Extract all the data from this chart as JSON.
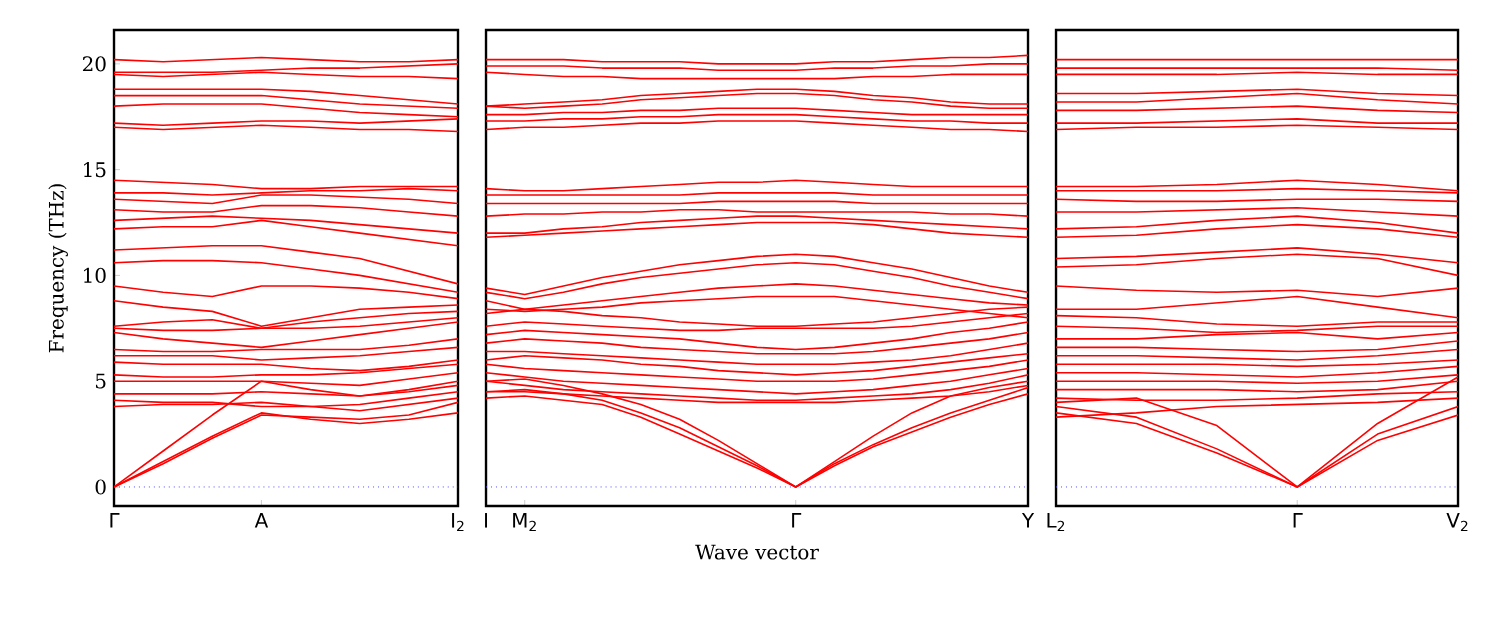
{
  "chart_data": [
    {
      "type": "line",
      "ylabel": "Frequency (THz)",
      "categories": [
        "Γ",
        null,
        null,
        "A",
        null,
        null,
        null,
        "I$_{2}$"
      ],
      "ylim": [
        -0.9,
        21.6
      ],
      "yticks": [
        0,
        5,
        10,
        15,
        20
      ],
      "ref_lines": [
        {
          "axis": "y",
          "value": 0,
          "color": "#4c4cff",
          "line_style": "dotted"
        }
      ],
      "series": [
        {
          "color": "#ff0000",
          "values": [
            0,
            1.1,
            2.3,
            3.4,
            3.3,
            3.2,
            3.4,
            4.0
          ]
        },
        {
          "color": "#ff0000",
          "values": [
            0,
            1.2,
            2.4,
            3.5,
            3.2,
            3.0,
            3.2,
            3.5
          ]
        },
        {
          "color": "#ff0000",
          "values": [
            0,
            1.7,
            3.4,
            5.0,
            4.6,
            4.3,
            4.5,
            4.8
          ]
        },
        {
          "color": "#ff0000",
          "values": [
            3.8,
            3.9,
            3.9,
            4.0,
            3.8,
            3.6,
            3.9,
            4.2
          ]
        },
        {
          "color": "#ff0000",
          "values": [
            4.1,
            4.0,
            4.0,
            3.8,
            3.8,
            3.9,
            4.2,
            4.5
          ]
        },
        {
          "color": "#ff0000",
          "values": [
            4.4,
            4.4,
            4.4,
            4.5,
            4.4,
            4.3,
            4.6,
            5.0
          ]
        },
        {
          "color": "#ff0000",
          "values": [
            5.0,
            5.0,
            5.0,
            5.0,
            4.9,
            4.8,
            5.1,
            5.4
          ]
        },
        {
          "color": "#ff0000",
          "values": [
            5.3,
            5.2,
            5.2,
            5.3,
            5.3,
            5.4,
            5.6,
            5.8
          ]
        },
        {
          "color": "#ff0000",
          "values": [
            5.9,
            5.8,
            5.8,
            5.8,
            5.6,
            5.5,
            5.7,
            6.0
          ]
        },
        {
          "color": "#ff0000",
          "values": [
            6.2,
            6.2,
            6.2,
            6.0,
            6.1,
            6.2,
            6.4,
            6.6
          ]
        },
        {
          "color": "#ff0000",
          "values": [
            6.5,
            6.4,
            6.4,
            6.5,
            6.5,
            6.5,
            6.7,
            7.0
          ]
        },
        {
          "color": "#ff0000",
          "values": [
            7.3,
            7.0,
            6.8,
            6.6,
            6.9,
            7.2,
            7.5,
            7.8
          ]
        },
        {
          "color": "#ff0000",
          "values": [
            7.5,
            7.4,
            7.4,
            7.5,
            7.5,
            7.6,
            7.8,
            8.0
          ]
        },
        {
          "color": "#ff0000",
          "values": [
            7.6,
            7.8,
            7.9,
            7.5,
            7.8,
            8.0,
            8.2,
            8.3
          ]
        },
        {
          "color": "#ff0000",
          "values": [
            8.8,
            8.5,
            8.3,
            7.6,
            8.0,
            8.4,
            8.5,
            8.6
          ]
        },
        {
          "color": "#ff0000",
          "values": [
            9.5,
            9.2,
            9.0,
            9.5,
            9.5,
            9.4,
            9.2,
            8.9
          ]
        },
        {
          "color": "#ff0000",
          "values": [
            10.6,
            10.7,
            10.7,
            10.6,
            10.3,
            10.0,
            9.6,
            9.2
          ]
        },
        {
          "color": "#ff0000",
          "values": [
            11.2,
            11.3,
            11.4,
            11.4,
            11.1,
            10.8,
            10.2,
            9.6
          ]
        },
        {
          "color": "#ff0000",
          "values": [
            12.2,
            12.3,
            12.3,
            12.6,
            12.3,
            12.0,
            11.7,
            11.4
          ]
        },
        {
          "color": "#ff0000",
          "values": [
            12.6,
            12.7,
            12.8,
            12.7,
            12.6,
            12.4,
            12.2,
            12.0
          ]
        },
        {
          "color": "#ff0000",
          "values": [
            13.1,
            13.0,
            13.0,
            13.3,
            13.3,
            13.2,
            13.0,
            12.8
          ]
        },
        {
          "color": "#ff0000",
          "values": [
            13.6,
            13.5,
            13.4,
            13.8,
            13.8,
            13.7,
            13.6,
            13.4
          ]
        },
        {
          "color": "#ff0000",
          "values": [
            13.9,
            13.9,
            13.8,
            13.9,
            14.0,
            14.0,
            14.1,
            14.0
          ]
        },
        {
          "color": "#ff0000",
          "values": [
            14.5,
            14.4,
            14.3,
            14.1,
            14.1,
            14.2,
            14.2,
            14.2
          ]
        },
        {
          "color": "#ff0000",
          "values": [
            17.0,
            16.9,
            17.0,
            17.1,
            17.0,
            16.9,
            16.9,
            16.8
          ]
        },
        {
          "color": "#ff0000",
          "values": [
            17.2,
            17.1,
            17.2,
            17.3,
            17.3,
            17.2,
            17.3,
            17.4
          ]
        },
        {
          "color": "#ff0000",
          "values": [
            18.0,
            18.1,
            18.1,
            18.1,
            17.9,
            17.7,
            17.6,
            17.5
          ]
        },
        {
          "color": "#ff0000",
          "values": [
            18.5,
            18.5,
            18.5,
            18.5,
            18.3,
            18.1,
            18.0,
            17.9
          ]
        },
        {
          "color": "#ff0000",
          "values": [
            18.8,
            18.8,
            18.8,
            18.8,
            18.7,
            18.5,
            18.3,
            18.1
          ]
        },
        {
          "color": "#ff0000",
          "values": [
            19.5,
            19.4,
            19.5,
            19.6,
            19.5,
            19.4,
            19.4,
            19.3
          ]
        },
        {
          "color": "#ff0000",
          "values": [
            19.6,
            19.6,
            19.6,
            19.7,
            19.8,
            19.8,
            19.9,
            20.0
          ]
        },
        {
          "color": "#ff0000",
          "values": [
            20.2,
            20.1,
            20.2,
            20.3,
            20.2,
            20.1,
            20.1,
            20.2
          ]
        }
      ]
    },
    {
      "type": "line",
      "xlabel": "Wave vector",
      "tick_labels": "x",
      "categories": [
        "I",
        "M$_{2}$",
        null,
        null,
        null,
        null,
        null,
        null,
        "Γ",
        null,
        null,
        null,
        null,
        null,
        "Y"
      ],
      "ylim": [
        -0.9,
        21.6
      ],
      "ref_lines": [
        {
          "axis": "y",
          "value": 0,
          "color": "#4c4cff",
          "line_style": "dotted"
        }
      ],
      "series": [
        {
          "color": "#ff0000",
          "values": [
            4.2,
            4.3,
            4.1,
            3.9,
            3.3,
            2.5,
            1.7,
            0.9,
            0,
            1.0,
            1.9,
            2.6,
            3.3,
            3.9,
            4.4
          ]
        },
        {
          "color": "#ff0000",
          "values": [
            4.5,
            4.6,
            4.4,
            4.1,
            3.5,
            2.8,
            1.9,
            1.0,
            0,
            1.1,
            2.0,
            2.8,
            3.5,
            4.1,
            4.7
          ]
        },
        {
          "color": "#ff0000",
          "values": [
            5.0,
            5.1,
            4.8,
            4.4,
            3.9,
            3.2,
            2.2,
            1.1,
            0,
            1.2,
            2.4,
            3.5,
            4.3,
            4.7,
            5.0
          ]
        },
        {
          "color": "#ff0000",
          "values": [
            4.5,
            4.5,
            4.4,
            4.3,
            4.2,
            4.1,
            4.0,
            4.0,
            4.0,
            4.0,
            4.1,
            4.2,
            4.3,
            4.5,
            4.8
          ]
        },
        {
          "color": "#ff0000",
          "values": [
            5.0,
            4.8,
            4.6,
            4.5,
            4.4,
            4.3,
            4.2,
            4.1,
            4.1,
            4.2,
            4.3,
            4.4,
            4.6,
            4.9,
            5.3
          ]
        },
        {
          "color": "#ff0000",
          "values": [
            5.4,
            5.2,
            5.0,
            4.9,
            4.8,
            4.7,
            4.6,
            4.5,
            4.4,
            4.5,
            4.6,
            4.8,
            5.0,
            5.3,
            5.6
          ]
        },
        {
          "color": "#ff0000",
          "values": [
            5.8,
            5.6,
            5.5,
            5.4,
            5.3,
            5.2,
            5.1,
            5.0,
            5.0,
            5.0,
            5.1,
            5.3,
            5.5,
            5.7,
            6.0
          ]
        },
        {
          "color": "#ff0000",
          "values": [
            6.0,
            6.2,
            6.1,
            6.0,
            5.8,
            5.7,
            5.5,
            5.4,
            5.3,
            5.4,
            5.5,
            5.7,
            5.9,
            6.1,
            6.3
          ]
        },
        {
          "color": "#ff0000",
          "values": [
            6.4,
            6.4,
            6.3,
            6.2,
            6.1,
            6.0,
            5.9,
            5.8,
            5.8,
            5.8,
            5.9,
            6.0,
            6.2,
            6.5,
            6.8
          ]
        },
        {
          "color": "#ff0000",
          "values": [
            6.8,
            7.0,
            6.9,
            6.8,
            6.6,
            6.5,
            6.4,
            6.3,
            6.3,
            6.3,
            6.4,
            6.6,
            6.8,
            7.0,
            7.3
          ]
        },
        {
          "color": "#ff0000",
          "values": [
            7.2,
            7.4,
            7.3,
            7.2,
            7.1,
            7.0,
            6.8,
            6.6,
            6.5,
            6.6,
            6.8,
            7.0,
            7.3,
            7.5,
            7.8
          ]
        },
        {
          "color": "#ff0000",
          "values": [
            7.6,
            7.8,
            7.7,
            7.6,
            7.5,
            7.4,
            7.4,
            7.5,
            7.5,
            7.5,
            7.5,
            7.6,
            7.8,
            8.0,
            8.2
          ]
        },
        {
          "color": "#ff0000",
          "values": [
            8.2,
            8.4,
            8.3,
            8.1,
            8.0,
            7.8,
            7.7,
            7.6,
            7.6,
            7.7,
            7.8,
            8.0,
            8.2,
            8.4,
            8.5
          ]
        },
        {
          "color": "#ff0000",
          "values": [
            8.4,
            8.3,
            8.4,
            8.5,
            8.7,
            8.8,
            8.9,
            9.0,
            9.0,
            9.0,
            8.8,
            8.6,
            8.4,
            8.2,
            8.0
          ]
        },
        {
          "color": "#ff0000",
          "values": [
            8.8,
            8.4,
            8.6,
            8.8,
            9.0,
            9.2,
            9.4,
            9.5,
            9.6,
            9.5,
            9.3,
            9.1,
            8.9,
            8.7,
            8.6
          ]
        },
        {
          "color": "#ff0000",
          "values": [
            9.2,
            8.9,
            9.2,
            9.6,
            9.9,
            10.1,
            10.3,
            10.5,
            10.6,
            10.5,
            10.2,
            9.9,
            9.5,
            9.2,
            8.9
          ]
        },
        {
          "color": "#ff0000",
          "values": [
            9.4,
            9.1,
            9.5,
            9.9,
            10.2,
            10.5,
            10.7,
            10.9,
            11.0,
            10.9,
            10.6,
            10.3,
            9.9,
            9.5,
            9.2
          ]
        },
        {
          "color": "#ff0000",
          "values": [
            11.8,
            11.9,
            12.0,
            12.1,
            12.2,
            12.3,
            12.4,
            12.5,
            12.5,
            12.5,
            12.4,
            12.2,
            12.0,
            11.9,
            11.8
          ]
        },
        {
          "color": "#ff0000",
          "values": [
            12.0,
            12.0,
            12.2,
            12.3,
            12.5,
            12.6,
            12.7,
            12.8,
            12.8,
            12.7,
            12.6,
            12.5,
            12.4,
            12.3,
            12.2
          ]
        },
        {
          "color": "#ff0000",
          "values": [
            12.8,
            12.9,
            12.9,
            13.0,
            13.0,
            13.1,
            13.1,
            13.0,
            13.0,
            13.0,
            13.0,
            13.0,
            12.9,
            12.9,
            12.8
          ]
        },
        {
          "color": "#ff0000",
          "values": [
            13.4,
            13.4,
            13.4,
            13.4,
            13.4,
            13.4,
            13.5,
            13.5,
            13.5,
            13.5,
            13.4,
            13.4,
            13.4,
            13.4,
            13.4
          ]
        },
        {
          "color": "#ff0000",
          "values": [
            13.8,
            13.8,
            13.8,
            13.8,
            13.8,
            13.8,
            13.9,
            13.9,
            13.9,
            13.9,
            13.8,
            13.8,
            13.8,
            13.8,
            13.8
          ]
        },
        {
          "color": "#ff0000",
          "values": [
            14.1,
            14.0,
            14.0,
            14.1,
            14.2,
            14.3,
            14.4,
            14.4,
            14.5,
            14.4,
            14.3,
            14.2,
            14.2,
            14.2,
            14.2
          ]
        },
        {
          "color": "#ff0000",
          "values": [
            16.9,
            17.0,
            17.0,
            17.1,
            17.2,
            17.2,
            17.3,
            17.3,
            17.3,
            17.2,
            17.1,
            17.0,
            16.9,
            16.9,
            16.8
          ]
        },
        {
          "color": "#ff0000",
          "values": [
            17.3,
            17.3,
            17.4,
            17.4,
            17.5,
            17.5,
            17.6,
            17.6,
            17.6,
            17.5,
            17.4,
            17.3,
            17.3,
            17.2,
            17.2
          ]
        },
        {
          "color": "#ff0000",
          "values": [
            17.6,
            17.6,
            17.7,
            17.7,
            17.8,
            17.8,
            17.9,
            17.9,
            17.9,
            17.8,
            17.7,
            17.6,
            17.6,
            17.6,
            17.6
          ]
        },
        {
          "color": "#ff0000",
          "values": [
            18.0,
            17.9,
            18.0,
            18.1,
            18.3,
            18.4,
            18.5,
            18.6,
            18.6,
            18.5,
            18.3,
            18.2,
            18.0,
            17.9,
            17.9
          ]
        },
        {
          "color": "#ff0000",
          "values": [
            18.0,
            18.1,
            18.2,
            18.3,
            18.5,
            18.6,
            18.7,
            18.8,
            18.8,
            18.7,
            18.5,
            18.4,
            18.2,
            18.1,
            18.1
          ]
        },
        {
          "color": "#ff0000",
          "values": [
            19.6,
            19.5,
            19.4,
            19.4,
            19.3,
            19.3,
            19.3,
            19.3,
            19.3,
            19.3,
            19.4,
            19.4,
            19.5,
            19.5,
            19.5
          ]
        },
        {
          "color": "#ff0000",
          "values": [
            19.9,
            19.9,
            19.9,
            19.8,
            19.8,
            19.8,
            19.7,
            19.7,
            19.7,
            19.8,
            19.8,
            19.9,
            19.9,
            20.0,
            20.0
          ]
        },
        {
          "color": "#ff0000",
          "values": [
            20.2,
            20.2,
            20.2,
            20.1,
            20.1,
            20.1,
            20.0,
            20.0,
            20.0,
            20.1,
            20.1,
            20.2,
            20.3,
            20.3,
            20.4
          ]
        }
      ]
    },
    {
      "type": "line",
      "tick_labels": "x",
      "categories": [
        "L$_{2}$",
        null,
        null,
        "Γ",
        null,
        "V$_{2}$"
      ],
      "ylim": [
        -0.9,
        21.6
      ],
      "ref_lines": [
        {
          "axis": "y",
          "value": 0,
          "color": "#4c4cff",
          "line_style": "dotted"
        }
      ],
      "series": [
        {
          "color": "#ff0000",
          "values": [
            3.5,
            3.0,
            1.6,
            0,
            2.2,
            3.4
          ]
        },
        {
          "color": "#ff0000",
          "values": [
            3.8,
            3.3,
            1.8,
            0,
            2.5,
            3.8
          ]
        },
        {
          "color": "#ff0000",
          "values": [
            4.0,
            4.2,
            2.9,
            0,
            3.0,
            5.2
          ]
        },
        {
          "color": "#ff0000",
          "values": [
            3.3,
            3.5,
            3.8,
            3.9,
            4.0,
            4.2
          ]
        },
        {
          "color": "#ff0000",
          "values": [
            4.2,
            4.1,
            4.1,
            4.2,
            4.4,
            4.5
          ]
        },
        {
          "color": "#ff0000",
          "values": [
            4.6,
            4.6,
            4.6,
            4.5,
            4.6,
            5.0
          ]
        },
        {
          "color": "#ff0000",
          "values": [
            5.0,
            5.0,
            5.0,
            4.9,
            5.0,
            5.3
          ]
        },
        {
          "color": "#ff0000",
          "values": [
            5.4,
            5.4,
            5.3,
            5.2,
            5.4,
            5.7
          ]
        },
        {
          "color": "#ff0000",
          "values": [
            5.8,
            5.8,
            5.8,
            5.7,
            5.8,
            6.0
          ]
        },
        {
          "color": "#ff0000",
          "values": [
            6.2,
            6.2,
            6.1,
            6.0,
            6.2,
            6.5
          ]
        },
        {
          "color": "#ff0000",
          "values": [
            6.6,
            6.6,
            6.5,
            6.4,
            6.5,
            6.9
          ]
        },
        {
          "color": "#ff0000",
          "values": [
            7.0,
            7.0,
            7.2,
            7.3,
            7.0,
            7.3
          ]
        },
        {
          "color": "#ff0000",
          "values": [
            7.6,
            7.5,
            7.3,
            7.4,
            7.6,
            7.6
          ]
        },
        {
          "color": "#ff0000",
          "values": [
            8.1,
            8.0,
            7.7,
            7.6,
            7.8,
            7.8
          ]
        },
        {
          "color": "#ff0000",
          "values": [
            8.4,
            8.4,
            8.7,
            9.0,
            8.5,
            8.0
          ]
        },
        {
          "color": "#ff0000",
          "values": [
            9.5,
            9.3,
            9.2,
            9.3,
            9.0,
            9.4
          ]
        },
        {
          "color": "#ff0000",
          "values": [
            10.4,
            10.5,
            10.8,
            11.0,
            10.8,
            10.0
          ]
        },
        {
          "color": "#ff0000",
          "values": [
            10.8,
            10.9,
            11.1,
            11.3,
            11.0,
            10.6
          ]
        },
        {
          "color": "#ff0000",
          "values": [
            11.8,
            11.9,
            12.2,
            12.4,
            12.2,
            11.8
          ]
        },
        {
          "color": "#ff0000",
          "values": [
            12.2,
            12.3,
            12.6,
            12.8,
            12.5,
            12.0
          ]
        },
        {
          "color": "#ff0000",
          "values": [
            13.0,
            13.0,
            13.1,
            13.2,
            13.0,
            12.8
          ]
        },
        {
          "color": "#ff0000",
          "values": [
            13.6,
            13.5,
            13.5,
            13.6,
            13.6,
            13.5
          ]
        },
        {
          "color": "#ff0000",
          "values": [
            14.0,
            14.0,
            14.0,
            14.1,
            14.0,
            13.9
          ]
        },
        {
          "color": "#ff0000",
          "values": [
            14.2,
            14.2,
            14.3,
            14.5,
            14.3,
            14.0
          ]
        },
        {
          "color": "#ff0000",
          "values": [
            16.9,
            17.0,
            17.0,
            17.1,
            17.0,
            16.9
          ]
        },
        {
          "color": "#ff0000",
          "values": [
            17.2,
            17.2,
            17.3,
            17.4,
            17.2,
            17.2
          ]
        },
        {
          "color": "#ff0000",
          "values": [
            17.8,
            17.8,
            17.9,
            18.0,
            17.8,
            17.7
          ]
        },
        {
          "color": "#ff0000",
          "values": [
            18.2,
            18.2,
            18.4,
            18.6,
            18.3,
            18.1
          ]
        },
        {
          "color": "#ff0000",
          "values": [
            18.6,
            18.6,
            18.7,
            18.8,
            18.6,
            18.5
          ]
        },
        {
          "color": "#ff0000",
          "values": [
            19.5,
            19.5,
            19.5,
            19.6,
            19.5,
            19.5
          ]
        },
        {
          "color": "#ff0000",
          "values": [
            19.8,
            19.8,
            19.8,
            19.8,
            19.8,
            19.7
          ]
        },
        {
          "color": "#ff0000",
          "values": [
            20.2,
            20.2,
            20.2,
            20.2,
            20.2,
            20.2
          ]
        }
      ]
    }
  ]
}
